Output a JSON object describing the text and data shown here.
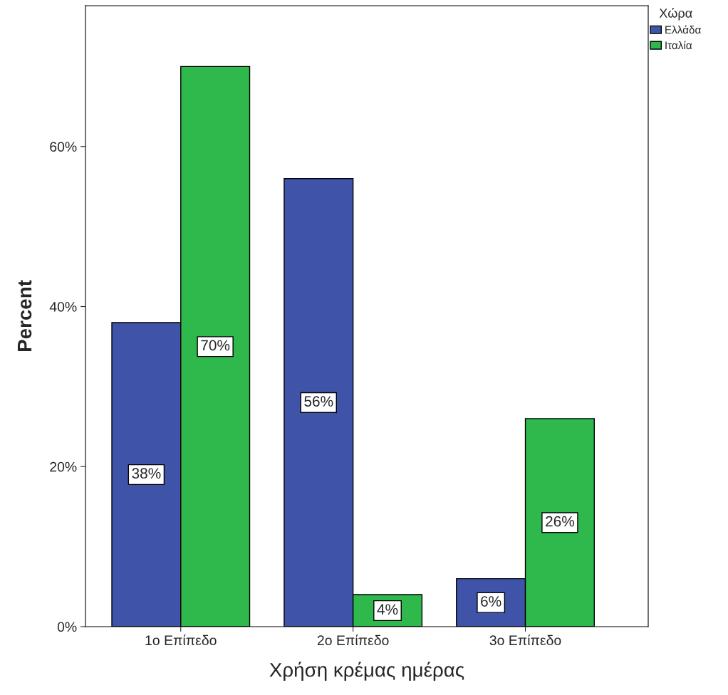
{
  "chart_data": {
    "type": "bar",
    "xlabel": "Χρήση κρέμας ημέρας",
    "ylabel": "Percent",
    "legend_title": "Χώρα",
    "legend": "top right",
    "categories": [
      "1ο Επίπεδο",
      "2ο Επίπεδο",
      "3ο Επίπεδο"
    ],
    "series": [
      {
        "name": "Ελλάδα",
        "color": "#3f53a8",
        "values": [
          38,
          56,
          6
        ],
        "value_labels": [
          "38%",
          "56%",
          "6%"
        ]
      },
      {
        "name": "Ιταλία",
        "color": "#2fb84b",
        "values": [
          70,
          4,
          26
        ],
        "value_labels": [
          "70%",
          "4%",
          "26%"
        ]
      }
    ],
    "ylim": [
      0,
      77.6
    ],
    "yticks": [
      {
        "value": 0,
        "label": "0%"
      },
      {
        "value": 20,
        "label": "20%"
      },
      {
        "value": 40,
        "label": "40%"
      },
      {
        "value": 60,
        "label": "60%"
      }
    ],
    "grid": false
  }
}
